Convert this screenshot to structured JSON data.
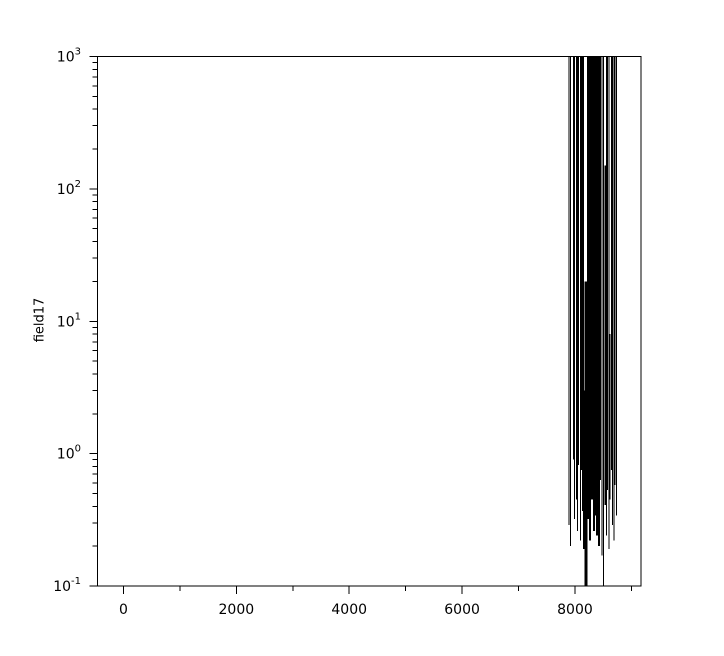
{
  "window": {
    "background_color": "#ffffff",
    "foreground_color": "#000000"
  },
  "chart_data": {
    "type": "line",
    "title": "",
    "xlabel": "",
    "ylabel": "field17",
    "legend": null,
    "grid": false,
    "line_color": "#000000",
    "axis_color": "#000000",
    "yscale": "log",
    "xlim": [
      -460,
      9170
    ],
    "ylog_lim": [
      -1,
      3
    ],
    "ylim": [
      0.1,
      1000
    ],
    "x_major_ticks": [
      0,
      2000,
      4000,
      6000,
      8000
    ],
    "x_major_tick_labels": [
      "0",
      "2000",
      "4000",
      "6000",
      "8000"
    ],
    "x_minor_ticks": [
      1000,
      3000,
      5000,
      7000,
      9000
    ],
    "y_major_tick_exponents": [
      -1,
      0,
      1,
      2,
      3
    ],
    "y_tick_mantissa": "10",
    "y_minor_tick_multipliers": [
      2,
      3,
      4,
      5,
      6,
      7,
      8,
      9
    ],
    "clipped_top_value": 1000,
    "description": "Noisy signal burst between x≈7890 and x≈8740; spikes exceed the 10^3 axis limit (clipped at top); lower excursions mostly 0.17–0.9, two dips reach the 10^-1 floor near x≈8195 and x≈8504; rest of domain has no data.",
    "spikes": [
      [
        7894,
        0.29,
        1000,
        1.3
      ],
      [
        7921,
        0.2,
        1000,
        1.3
      ],
      [
        7974,
        0.9,
        1000,
        1.3
      ],
      [
        7991,
        0.32,
        1000,
        1.3
      ],
      [
        8027,
        0.45,
        1000,
        1.3
      ],
      [
        8044,
        0.26,
        1000,
        1.3
      ],
      [
        8062,
        0.82,
        1000,
        1.3
      ],
      [
        8097,
        0.22,
        1000,
        1.3
      ],
      [
        8115,
        0.75,
        1000,
        1.3
      ],
      [
        8133,
        0.37,
        1000,
        1.3
      ],
      [
        8150,
        0.19,
        1000,
        1.3
      ],
      [
        8168,
        0.19,
        3,
        1.4
      ],
      [
        8195,
        0.1,
        20,
        2.6
      ],
      [
        8230,
        0.32,
        1000,
        1.9
      ],
      [
        8248,
        0.75,
        1000,
        1.9
      ],
      [
        8266,
        0.22,
        1000,
        1.9
      ],
      [
        8283,
        0.53,
        1000,
        1.9
      ],
      [
        8301,
        0.45,
        1000,
        1.9
      ],
      [
        8319,
        0.9,
        1000,
        1.9
      ],
      [
        8336,
        0.26,
        1000,
        1.9
      ],
      [
        8354,
        0.34,
        1000,
        1.9
      ],
      [
        8372,
        0.68,
        1000,
        1.9
      ],
      [
        8389,
        0.24,
        1000,
        1.9
      ],
      [
        8407,
        0.49,
        1000,
        1.9
      ],
      [
        8425,
        0.2,
        1000,
        1.9
      ],
      [
        8452,
        0.63,
        1000,
        1.3
      ],
      [
        8478,
        0.17,
        1000,
        1.3
      ],
      [
        8504,
        0.1,
        1000,
        1.2
      ],
      [
        8539,
        0.41,
        150,
        1.3
      ],
      [
        8557,
        0.24,
        1000,
        1.3
      ],
      [
        8575,
        0.53,
        1000,
        1.3
      ],
      [
        8602,
        0.19,
        1000,
        1.3
      ],
      [
        8619,
        0.45,
        8,
        1.4
      ],
      [
        8646,
        0.75,
        1000,
        1.3
      ],
      [
        8664,
        0.29,
        1000,
        1.3
      ],
      [
        8690,
        0.22,
        1000,
        1.3
      ],
      [
        8708,
        0.58,
        1000,
        1.3
      ],
      [
        8735,
        0.34,
        1000,
        1.3
      ]
    ]
  }
}
